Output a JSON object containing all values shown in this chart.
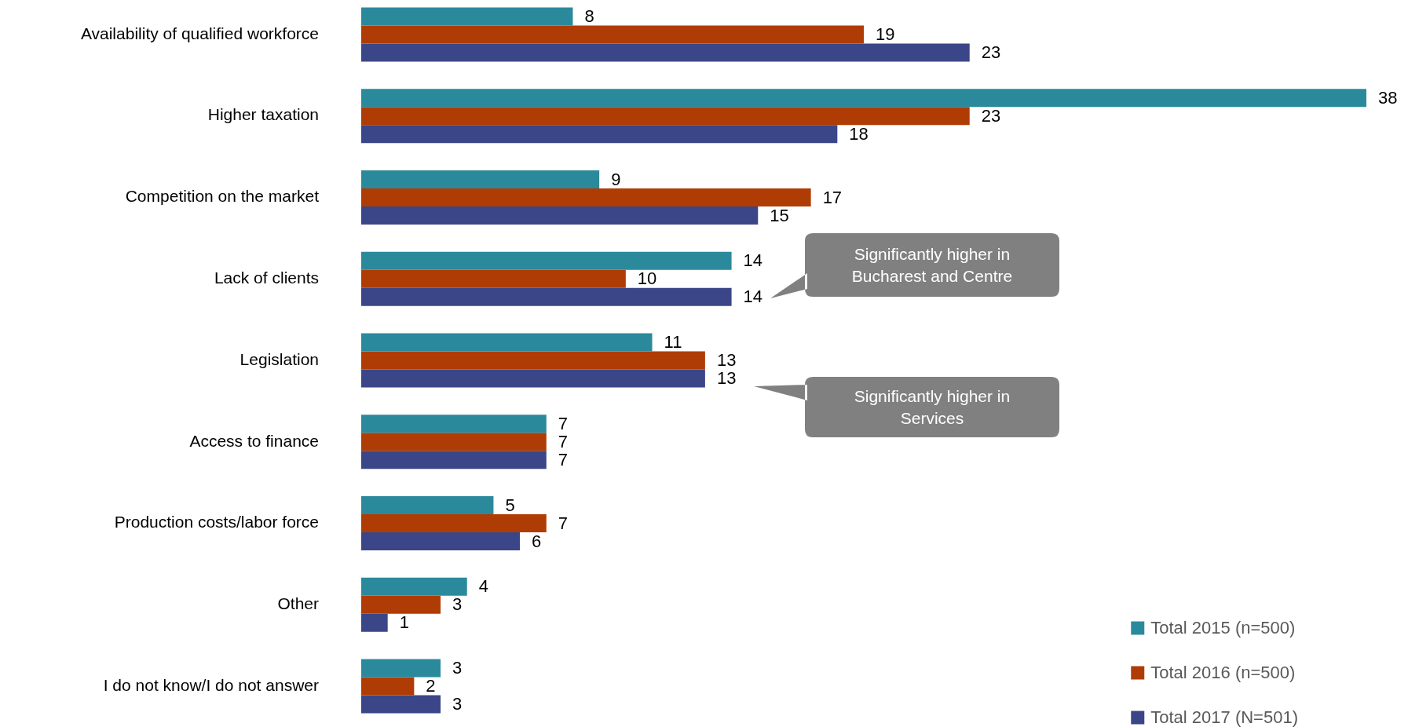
{
  "chart_data": {
    "type": "bar",
    "orientation": "horizontal",
    "categories": [
      "Availability of qualified workforce",
      "Higher taxation",
      "Competition on the market",
      "Lack of clients",
      "Legislation",
      "Access to finance",
      "Production costs/labor force",
      "Other",
      "I do not know/I do not answer"
    ],
    "series": [
      {
        "name": "Total 2015 (n=500)",
        "color": "#2b899c",
        "values": [
          8,
          38,
          9,
          14,
          11,
          7,
          5,
          4,
          3
        ]
      },
      {
        "name": "Total 2016 (n=500)",
        "color": "#b03c05",
        "values": [
          19,
          23,
          17,
          10,
          13,
          7,
          7,
          3,
          2
        ]
      },
      {
        "name": "Total 2017 (N=501)",
        "color": "#3a4687",
        "values": [
          23,
          18,
          15,
          14,
          13,
          7,
          6,
          1,
          3
        ]
      }
    ],
    "data_labels": true,
    "tick_labels": "y",
    "legend": "bottom right",
    "annotations": [
      "Significantly higher in Bucharest and Centre",
      "Significantly higher in Services"
    ]
  }
}
